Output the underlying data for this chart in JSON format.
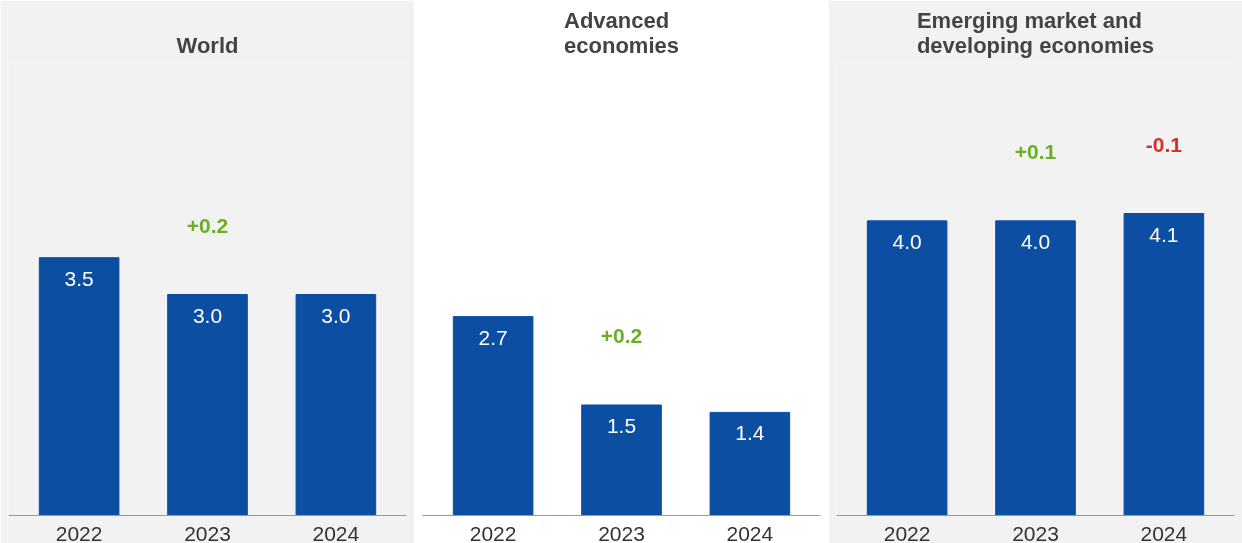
{
  "chart_data": [
    {
      "type": "bar",
      "title": "World",
      "categories": [
        "2022",
        "2023",
        "2024"
      ],
      "values": [
        3.5,
        3.0,
        3.0
      ],
      "value_labels": [
        "3.5",
        "3.0",
        "3.0"
      ],
      "color": "#0b4ea2",
      "tick_labels": "x",
      "grid": false,
      "annotations": [
        {
          "text": "+0.2",
          "x": "2023",
          "y": 3.0
        }
      ]
    },
    {
      "type": "bar",
      "title": "Advanced\neconomies",
      "categories": [
        "2022",
        "2023",
        "2024"
      ],
      "values": [
        2.7,
        1.5,
        1.4
      ],
      "value_labels": [
        "2.7",
        "1.5",
        "1.4"
      ],
      "color": "#0b4ea2",
      "tick_labels": "x",
      "grid": false,
      "annotations": [
        {
          "text": "+0.2",
          "x": "2023",
          "y": 1.5
        }
      ]
    },
    {
      "type": "bar",
      "title": "Emerging market and\ndeveloping economies",
      "categories": [
        "2022",
        "2023",
        "2024"
      ],
      "values": [
        4.0,
        4.0,
        4.1
      ],
      "value_labels": [
        "4.0",
        "4.0",
        "4.1"
      ],
      "color": "#0b4ea2",
      "tick_labels": "x",
      "grid": false,
      "annotations": [
        {
          "text": "+0.1",
          "x": "2023",
          "y": 4.0
        },
        {
          "text": "-0.1",
          "x": "2024",
          "y": 4.1
        }
      ]
    }
  ]
}
